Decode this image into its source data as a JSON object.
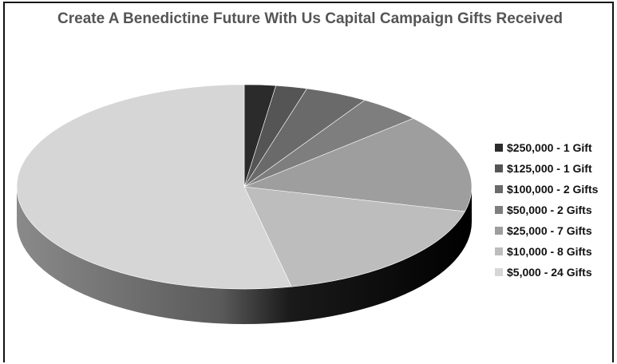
{
  "chart_data": {
    "type": "pie",
    "title": "Create A Benedictine Future With Us Capital Campaign Gifts Received",
    "categories": [
      "$250,000 - 1 Gift",
      "$125,000 - 1 Gift",
      "$100,000 - 2 Gifts",
      "$50,000 - 2 Gifts",
      "$25,000 - 7 Gifts",
      "$10,000 - 8 Gifts",
      "$5,000 - 24 Gifts"
    ],
    "values": [
      1,
      1,
      2,
      2,
      7,
      8,
      24
    ],
    "colors": [
      "#2b2b2b",
      "#555555",
      "#6a6a6a",
      "#7e7e7e",
      "#9e9e9e",
      "#bdbdbd",
      "#d6d6d6"
    ],
    "legend_position": "right",
    "style": "3d"
  }
}
